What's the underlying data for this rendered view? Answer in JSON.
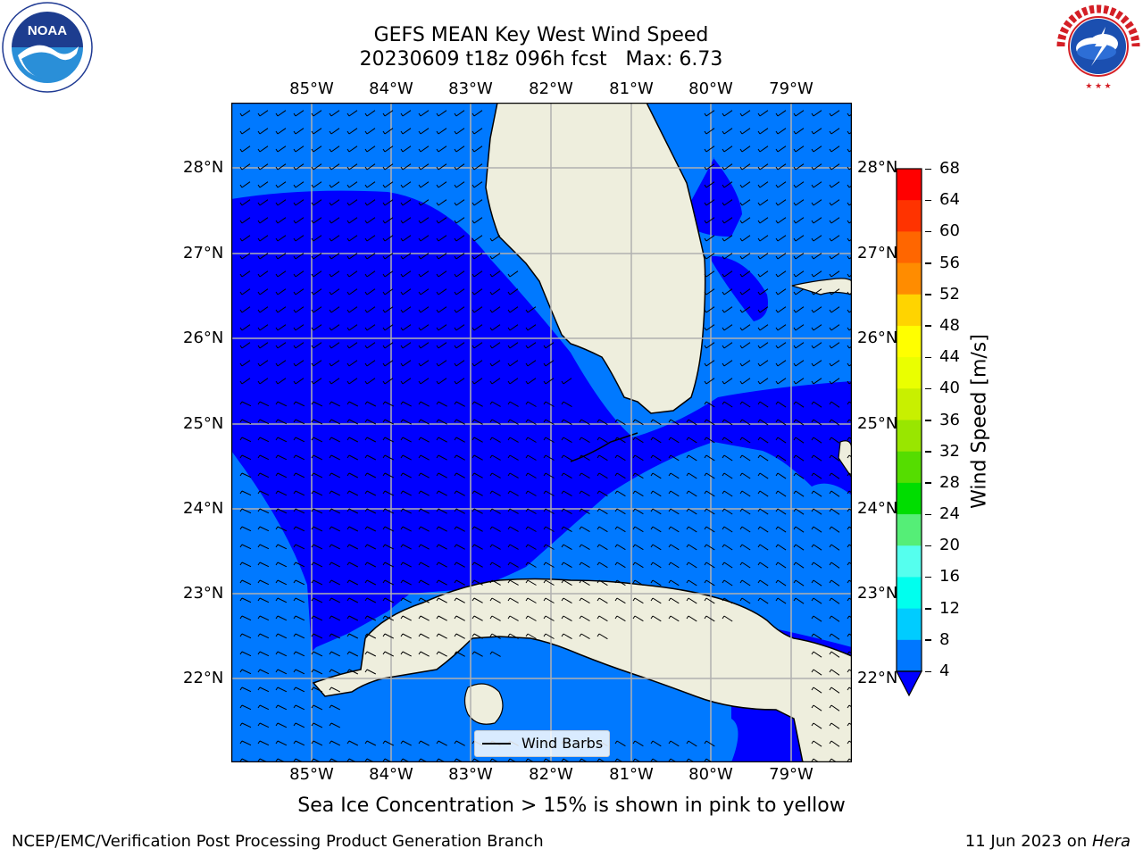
{
  "title": {
    "line1": "GEFS MEAN Key West Wind Speed",
    "line2": "20230609 t18z 096h fcst   Max: 6.73"
  },
  "logos": {
    "left": {
      "name": "noaa-logo",
      "text": "NOAA",
      "ring_text": "NATIONAL OCEANIC AND ATMOSPHERIC ADMINISTRATION · U.S. DEPARTMENT OF COMMERCE"
    },
    "right": {
      "name": "nws-logo",
      "ring_text": "NATIONAL WEATHER SERVICE"
    }
  },
  "map": {
    "region": "Key West",
    "lon_labels": [
      "85°W",
      "84°W",
      "83°W",
      "82°W",
      "81°W",
      "80°W",
      "79°W"
    ],
    "lat_labels": [
      "28°N",
      "27°N",
      "26°N",
      "25°N",
      "24°N",
      "23°N",
      "22°N"
    ],
    "legend_label": "Wind Barbs"
  },
  "colorbar": {
    "title": "Wind Speed [m/s]",
    "ticks": [
      "68",
      "64",
      "60",
      "56",
      "52",
      "48",
      "44",
      "40",
      "36",
      "32",
      "28",
      "24",
      "20",
      "16",
      "12",
      "8",
      "4"
    ],
    "colors": [
      "#ff0000",
      "#ff3300",
      "#ff6600",
      "#ff8c00",
      "#ffb000",
      "#ffd400",
      "#ffff00",
      "#eaff00",
      "#c8f000",
      "#99e600",
      "#55dd00",
      "#00dd00",
      "#55ee77",
      "#99ffee",
      "#55ffee",
      "#00ffee",
      "#00ccff",
      "#0077ff"
    ],
    "under_color": "#0000ff"
  },
  "colors": {
    "ocean_light": "#0079ff",
    "ocean_dark": "#0000ff",
    "land": "#eeeedd",
    "grid": "#b0b0b0"
  },
  "note": "Sea Ice Concentration > 15% is shown in pink to yellow",
  "footer": {
    "left": "NCEP/EMC/Verification Post Processing Product Generation Branch",
    "date": "11 Jun 2023 on ",
    "host": "Hera"
  }
}
